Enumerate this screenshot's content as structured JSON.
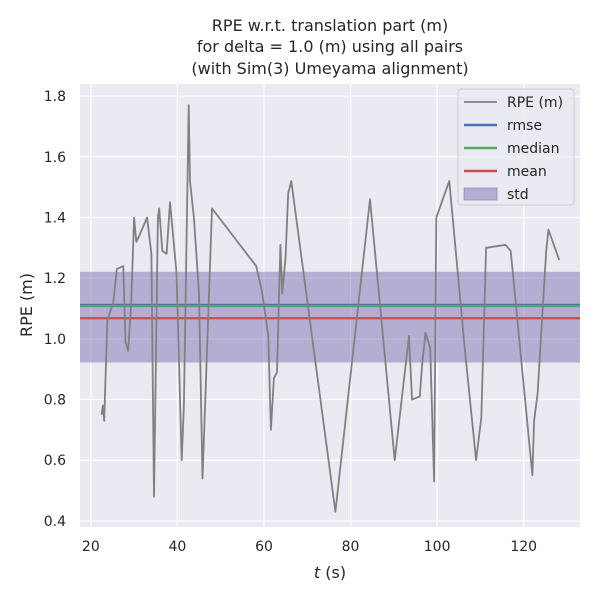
{
  "chart_data": {
    "type": "line",
    "title_lines": [
      "RPE w.r.t. translation part (m)",
      "for delta = 1.0 (m) using all pairs",
      "(with Sim(3) Umeyama alignment)"
    ],
    "xlabel_italic": "t",
    "xlabel_rest": " (s)",
    "ylabel": "RPE (m)",
    "xlim": [
      17.5,
      133
    ],
    "ylim": [
      0.38,
      1.84
    ],
    "xticks": [
      20,
      40,
      60,
      80,
      100,
      120
    ],
    "yticks": [
      0.4,
      0.6,
      0.8,
      1.0,
      1.2,
      1.4,
      1.6,
      1.8
    ],
    "ytick_labels": [
      "0.4",
      "0.6",
      "0.8",
      "1.0",
      "1.2",
      "1.4",
      "1.6",
      "1.8"
    ],
    "grid": true,
    "legend_position": "top-right",
    "series": [
      {
        "name": "RPE (m)",
        "color": "#808080",
        "x": [
          22.5,
          22.8,
          23.1,
          23.8,
          25.2,
          26.0,
          27.5,
          28.0,
          28.6,
          29.3,
          30.0,
          30.5,
          31.2,
          33.0,
          34.0,
          34.6,
          35.5,
          35.8,
          36.5,
          37.5,
          38.3,
          39.8,
          41.0,
          41.5,
          42.6,
          42.9,
          43.8,
          45.0,
          45.8,
          46.5,
          48.0,
          58.2,
          59.5,
          61.0,
          61.6,
          62.3,
          63.0,
          63.8,
          64.2,
          65.0,
          65.6,
          66.3,
          76.5,
          84.5,
          90.2,
          93.5,
          94.2,
          96.0,
          96.5,
          97.3,
          98.4,
          99.3,
          99.8,
          102.8,
          106.3,
          109.0,
          110.2,
          111.3,
          115.8,
          117.0,
          122.0,
          122.4,
          123.2,
          125.2,
          125.7,
          128.2
        ],
        "y": [
          0.75,
          0.78,
          0.73,
          1.06,
          1.12,
          1.23,
          1.24,
          0.99,
          0.96,
          1.11,
          1.4,
          1.32,
          1.34,
          1.4,
          1.28,
          0.48,
          1.4,
          1.43,
          1.29,
          1.28,
          1.45,
          1.22,
          0.6,
          0.78,
          1.77,
          1.52,
          1.4,
          1.15,
          0.54,
          0.82,
          1.43,
          1.24,
          1.16,
          1.01,
          0.7,
          0.87,
          0.89,
          1.31,
          1.15,
          1.27,
          1.48,
          1.52,
          0.43,
          1.46,
          0.6,
          1.01,
          0.8,
          0.81,
          0.91,
          1.02,
          0.97,
          0.53,
          1.4,
          1.52,
          0.98,
          0.6,
          0.74,
          1.3,
          1.31,
          1.29,
          0.55,
          0.73,
          0.82,
          1.29,
          1.36,
          1.26
        ]
      }
    ],
    "stats": [
      {
        "name": "rmse",
        "value": 1.112,
        "color": "#4c72b0"
      },
      {
        "name": "median",
        "value": 1.108,
        "color": "#55a868"
      },
      {
        "name": "mean",
        "value": 1.068,
        "color": "#c44e52"
      }
    ],
    "std_band": {
      "name": "std",
      "lower": 0.922,
      "upper": 1.221,
      "color": "#8172b2"
    },
    "colors": {
      "axes_bg": "#eaeaf2",
      "grid": "#ffffff",
      "text": "#262626"
    }
  }
}
